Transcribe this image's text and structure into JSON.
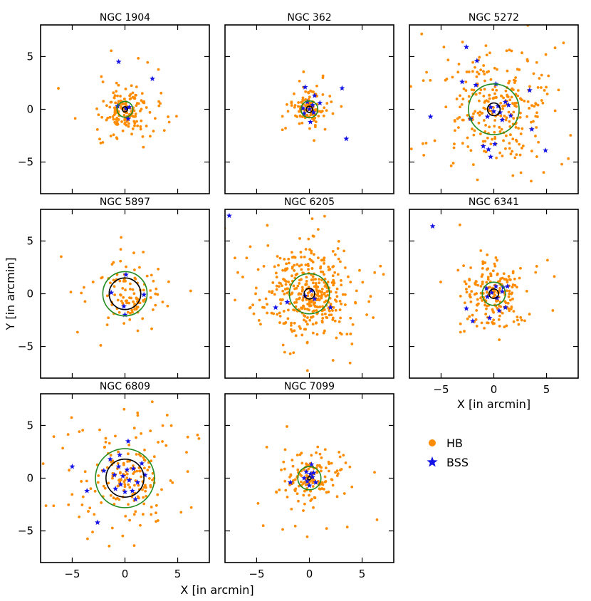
{
  "chart_data": {
    "type": "scatter",
    "x_label": "X [in arcmin]",
    "y_label": "Y [in arcmin]",
    "xlim": [
      -8,
      8
    ],
    "ylim": [
      -8,
      8
    ],
    "ticks": [
      -5,
      0,
      5
    ],
    "tick_labels": [
      "−5",
      "0",
      "5"
    ],
    "colors": {
      "hb": "#ff8c00",
      "bss": "#1414e6",
      "inner_circle": "#000000",
      "outer_circle": "#228b22"
    },
    "legend": [
      {
        "key": "hb",
        "label": "HB",
        "marker": "circle"
      },
      {
        "key": "bss",
        "label": "BSS",
        "marker": "star"
      }
    ],
    "panels": [
      {
        "title": "NGC 1904",
        "inner_r": 0.25,
        "outer_r": 0.75,
        "hb_n": 170,
        "hb_sigma": 1.4,
        "seed": 11,
        "bss": [
          [
            -0.6,
            4.5
          ],
          [
            2.6,
            2.9
          ],
          [
            -0.7,
            0.3
          ],
          [
            0.3,
            -0.9
          ],
          [
            0.1,
            0.05
          ],
          [
            0.4,
            0.2
          ]
        ]
      },
      {
        "title": "NGC 362",
        "inner_r": 0.3,
        "outer_r": 0.8,
        "hb_n": 120,
        "hb_sigma": 0.9,
        "seed": 23,
        "bss": [
          [
            -0.4,
            2.1
          ],
          [
            0.5,
            1.3
          ],
          [
            -0.2,
            0.7
          ],
          [
            0.3,
            0.4
          ],
          [
            -0.5,
            -0.4
          ],
          [
            0.1,
            -1.2
          ],
          [
            -0.6,
            0.1
          ],
          [
            0.4,
            -0.3
          ],
          [
            1.0,
            0.6
          ],
          [
            3.1,
            2.0
          ],
          [
            3.5,
            -2.8
          ],
          [
            0.0,
            0.0
          ]
        ]
      },
      {
        "title": "NGC 5272",
        "inner_r": 0.6,
        "outer_r": 2.4,
        "hb_n": 300,
        "hb_sigma": 3.0,
        "seed": 37,
        "bss": [
          [
            -2.6,
            5.9
          ],
          [
            -1.6,
            4.6
          ],
          [
            -3.0,
            2.6
          ],
          [
            -1.7,
            2.3
          ],
          [
            0.2,
            2.4
          ],
          [
            3.4,
            1.8
          ],
          [
            -6.0,
            -0.7
          ],
          [
            -2.2,
            -0.9
          ],
          [
            -0.6,
            -0.7
          ],
          [
            0.6,
            -0.3
          ],
          [
            1.1,
            0.7
          ],
          [
            1.4,
            0.4
          ],
          [
            1.6,
            -0.6
          ],
          [
            3.6,
            -1.9
          ],
          [
            4.9,
            -3.9
          ],
          [
            -1.0,
            -3.5
          ],
          [
            -0.5,
            -3.8
          ],
          [
            0.1,
            -3.3
          ],
          [
            -0.3,
            -4.5
          ],
          [
            0.4,
            0.3
          ],
          [
            -0.3,
            0.2
          ],
          [
            0.0,
            -0.2
          ],
          [
            0.8,
            -1.0
          ]
        ]
      },
      {
        "title": "NGC 5897",
        "inner_r": 1.5,
        "outer_r": 2.1,
        "hb_n": 110,
        "hb_sigma": 1.9,
        "seed": 53,
        "bss": [
          [
            0.1,
            1.8
          ],
          [
            -1.3,
            0.1
          ],
          [
            1.8,
            -0.1
          ],
          [
            -0.1,
            -1.2
          ],
          [
            0.0,
            -2.0
          ]
        ]
      },
      {
        "title": "NGC 6205",
        "inner_r": 0.5,
        "outer_r": 1.9,
        "hb_n": 420,
        "hb_sigma": 2.5,
        "seed": 71,
        "bss": [
          [
            -7.6,
            7.4
          ],
          [
            -3.2,
            -1.3
          ],
          [
            -2.1,
            -0.8
          ],
          [
            2.0,
            -1.3
          ],
          [
            0.2,
            0.3
          ],
          [
            -0.4,
            -0.2
          ],
          [
            0.5,
            -0.5
          ]
        ]
      },
      {
        "title": "NGC 6341",
        "inner_r": 0.45,
        "outer_r": 1.1,
        "hb_n": 200,
        "hb_sigma": 1.8,
        "seed": 89,
        "bss": [
          [
            -5.8,
            6.4
          ],
          [
            -2.6,
            -1.4
          ],
          [
            -2.0,
            -2.6
          ],
          [
            -0.7,
            0.5
          ],
          [
            0.2,
            0.7
          ],
          [
            0.8,
            0.2
          ],
          [
            1.1,
            -1.3
          ],
          [
            0.5,
            -1.6
          ],
          [
            -0.4,
            -2.3
          ],
          [
            0.9,
            0.6
          ],
          [
            -0.2,
            0.1
          ],
          [
            0.3,
            -0.4
          ],
          [
            -0.6,
            -0.3
          ],
          [
            1.3,
            0.7
          ]
        ]
      },
      {
        "title": "NGC 6809",
        "inner_r": 1.8,
        "outer_r": 2.8,
        "hb_n": 190,
        "hb_sigma": 2.6,
        "seed": 97,
        "bss": [
          [
            -5.0,
            1.1
          ],
          [
            -3.6,
            -1.2
          ],
          [
            -2.6,
            -4.2
          ],
          [
            -1.4,
            1.8
          ],
          [
            -1.0,
            0.3
          ],
          [
            -0.6,
            1.1
          ],
          [
            -0.4,
            -0.6
          ],
          [
            0.2,
            0.8
          ],
          [
            0.4,
            -0.2
          ],
          [
            0.8,
            0.9
          ],
          [
            1.2,
            -0.4
          ],
          [
            1.6,
            1.4
          ],
          [
            0.0,
            -1.3
          ],
          [
            -0.9,
            -1.0
          ],
          [
            0.3,
            3.5
          ],
          [
            -0.5,
            2.2
          ],
          [
            1.9,
            0.3
          ],
          [
            1.0,
            -2.0
          ],
          [
            -2.0,
            0.7
          ],
          [
            0.7,
            -1.2
          ],
          [
            -0.2,
            0.2
          ]
        ]
      },
      {
        "title": "NGC 7099",
        "inner_r": 0.15,
        "outer_r": 1.1,
        "hb_n": 160,
        "hb_sigma": 1.6,
        "seed": 113,
        "bss": [
          [
            -1.8,
            -0.4
          ],
          [
            0.2,
            1.3
          ],
          [
            -0.3,
            0.6
          ],
          [
            0.4,
            0.5
          ],
          [
            -0.5,
            0.0
          ],
          [
            0.6,
            -0.4
          ],
          [
            0.0,
            -0.7
          ],
          [
            -0.2,
            -0.3
          ],
          [
            0.3,
            0.1
          ],
          [
            0.1,
            0.4
          ]
        ]
      }
    ]
  }
}
